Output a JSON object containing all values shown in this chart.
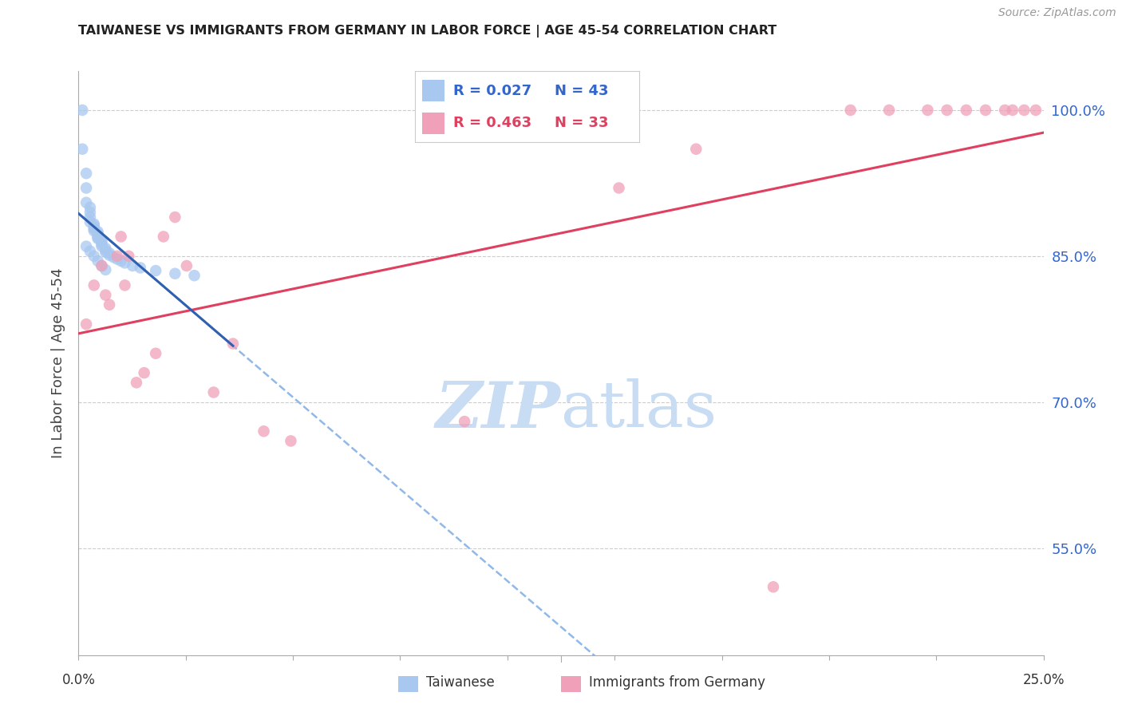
{
  "title": "TAIWANESE VS IMMIGRANTS FROM GERMANY IN LABOR FORCE | AGE 45-54 CORRELATION CHART",
  "source": "Source: ZipAtlas.com",
  "ylabel": "In Labor Force | Age 45-54",
  "ytick_labels": [
    "55.0%",
    "70.0%",
    "85.0%",
    "100.0%"
  ],
  "ytick_values": [
    0.55,
    0.7,
    0.85,
    1.0
  ],
  "xlim": [
    0.0,
    0.25
  ],
  "ylim": [
    0.44,
    1.04
  ],
  "legend_blue_r": "R = 0.027",
  "legend_blue_n": "N = 43",
  "legend_pink_r": "R = 0.463",
  "legend_pink_n": "N = 33",
  "blue_scatter_color": "#A8C8F0",
  "pink_scatter_color": "#F0A0B8",
  "blue_line_color": "#3060B0",
  "pink_line_color": "#E04060",
  "blue_dash_color": "#90B8E8",
  "watermark_color": "#C8DCF4",
  "title_color": "#222222",
  "source_color": "#999999",
  "ylabel_color": "#444444",
  "tick_label_color": "#3366CC",
  "grid_color": "#CCCCCC",
  "taiwanese_x": [
    0.001,
    0.001,
    0.002,
    0.002,
    0.002,
    0.003,
    0.003,
    0.003,
    0.003,
    0.004,
    0.004,
    0.004,
    0.004,
    0.004,
    0.005,
    0.005,
    0.005,
    0.005,
    0.005,
    0.006,
    0.006,
    0.006,
    0.006,
    0.007,
    0.007,
    0.007,
    0.008,
    0.008,
    0.009,
    0.01,
    0.011,
    0.012,
    0.014,
    0.016,
    0.02,
    0.025,
    0.03,
    0.002,
    0.003,
    0.004,
    0.005,
    0.006,
    0.007
  ],
  "taiwanese_y": [
    1.0,
    0.96,
    0.935,
    0.92,
    0.905,
    0.9,
    0.895,
    0.89,
    0.885,
    0.883,
    0.881,
    0.879,
    0.878,
    0.876,
    0.875,
    0.873,
    0.871,
    0.869,
    0.868,
    0.866,
    0.864,
    0.862,
    0.86,
    0.858,
    0.856,
    0.854,
    0.853,
    0.851,
    0.849,
    0.847,
    0.845,
    0.843,
    0.84,
    0.838,
    0.835,
    0.832,
    0.83,
    0.86,
    0.855,
    0.85,
    0.845,
    0.84,
    0.836
  ],
  "germany_x": [
    0.002,
    0.004,
    0.006,
    0.007,
    0.008,
    0.01,
    0.011,
    0.012,
    0.013,
    0.015,
    0.017,
    0.02,
    0.022,
    0.025,
    0.028,
    0.035,
    0.04,
    0.048,
    0.055,
    0.1,
    0.14,
    0.16,
    0.18,
    0.2,
    0.21,
    0.22,
    0.225,
    0.23,
    0.235,
    0.24,
    0.242,
    0.245,
    0.248
  ],
  "germany_y": [
    0.78,
    0.82,
    0.84,
    0.81,
    0.8,
    0.85,
    0.87,
    0.82,
    0.85,
    0.72,
    0.73,
    0.75,
    0.87,
    0.89,
    0.84,
    0.71,
    0.76,
    0.67,
    0.66,
    0.68,
    0.92,
    0.96,
    0.51,
    1.0,
    1.0,
    1.0,
    1.0,
    1.0,
    1.0,
    1.0,
    1.0,
    1.0,
    1.0
  ]
}
